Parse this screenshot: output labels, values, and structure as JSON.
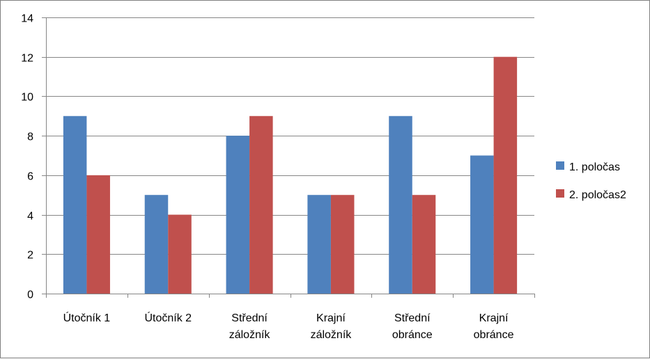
{
  "chart_data": {
    "type": "bar",
    "categories": [
      [
        "Útočník 1"
      ],
      [
        "Útočník 2"
      ],
      [
        "Střední",
        "záložník"
      ],
      [
        "Krajní",
        "záložník"
      ],
      [
        "Střední",
        "obránce"
      ],
      [
        "Krajní",
        "obránce"
      ]
    ],
    "series": [
      {
        "name": "1. poločas",
        "color": "#4f81bd",
        "values": [
          9,
          5,
          8,
          5,
          9,
          7
        ]
      },
      {
        "name": "2. poločas2",
        "color": "#c0504d",
        "values": [
          6,
          4,
          9,
          5,
          5,
          12
        ]
      }
    ],
    "ylim": [
      0,
      14
    ],
    "yticks": [
      0,
      2,
      4,
      6,
      8,
      10,
      12,
      14
    ],
    "grid": true,
    "legend_position": "right"
  }
}
